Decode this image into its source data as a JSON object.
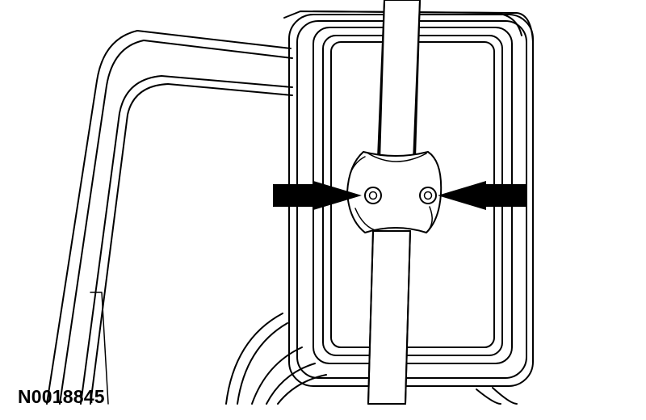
{
  "figure": {
    "id": "N0018845",
    "subject": "mirror-mount-fasteners"
  },
  "colors": {
    "line": "#000000",
    "background": "#ffffff"
  }
}
